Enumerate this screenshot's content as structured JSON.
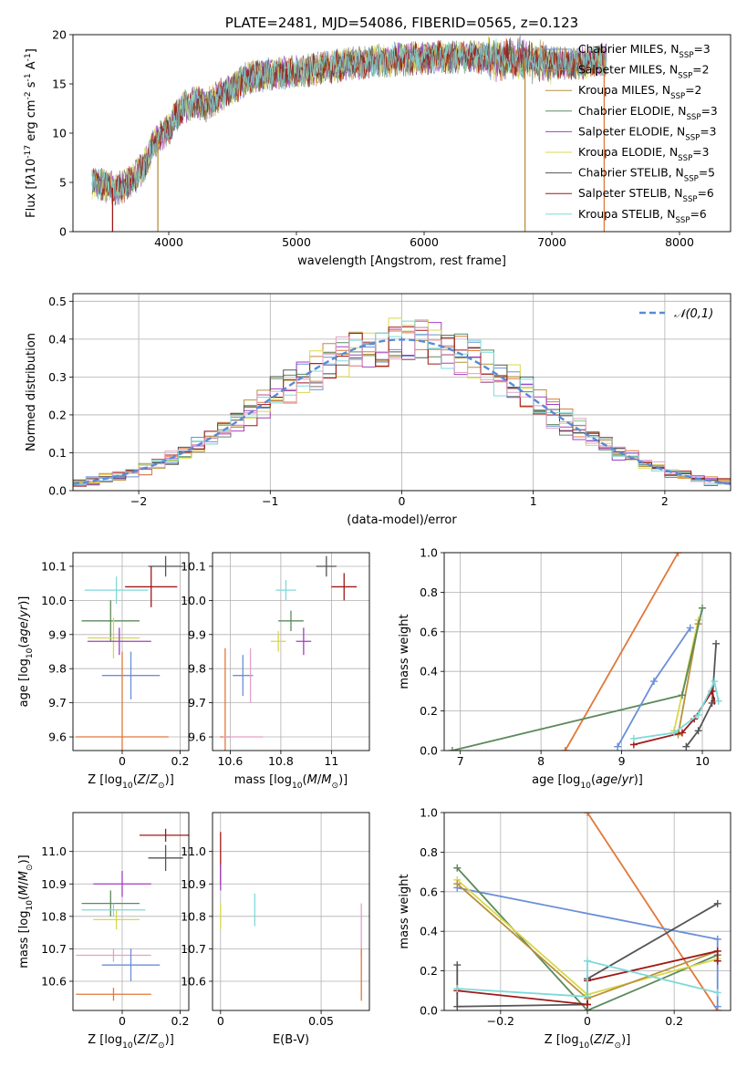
{
  "chart_data": [
    {
      "id": "spectrum",
      "type": "line",
      "title": "PLATE=2481, MJD=54086, FIBERID=0565, z=0.123",
      "xlabel": "wavelength [Angstrom, rest frame]",
      "ylabel": "Flux [f$\\lambda$10$^{-17}$ erg cm$^{-2}$ s$^{-1}$ A$^{-1}$]",
      "xlim": [
        3250,
        8400
      ],
      "ylim": [
        0,
        20
      ],
      "xticks": [
        4000,
        5000,
        6000,
        7000,
        8000
      ],
      "yticks": [
        0,
        5,
        10,
        15,
        20
      ],
      "grid": false,
      "legend_position": "top-right",
      "series": [
        {
          "name": "Chabrier MILES, N$_{SSP}$=3",
          "color": "#6a8fd8"
        },
        {
          "name": "Salpeter MILES, N$_{SSP}$=2",
          "color": "#e0783a"
        },
        {
          "name": "Kroupa MILES, N$_{SSP}$=2",
          "color": "#b8913c"
        },
        {
          "name": "Chabrier ELODIE, N$_{SSP}$=3",
          "color": "#5c8a5c"
        },
        {
          "name": "Salpeter ELODIE, N$_{SSP}$=3",
          "color": "#a040c0"
        },
        {
          "name": "Kroupa ELODIE, N$_{SSP}$=3",
          "color": "#d8d84a"
        },
        {
          "name": "Chabrier STELIB, N$_{SSP}$=5",
          "color": "#555555"
        },
        {
          "name": "Salpeter STELIB, N$_{SSP}$=6",
          "color": "#a01818"
        },
        {
          "name": "Kroupa STELIB, N$_{SSP}$=6",
          "color": "#7fd8d8"
        }
      ],
      "continuum": {
        "x": [
          3400,
          3500,
          3600,
          3700,
          3800,
          3900,
          4000,
          4100,
          4200,
          4300,
          4400,
          4500,
          4600,
          4800,
          5000,
          5200,
          5400,
          5600,
          5800,
          6000,
          6200,
          6400,
          6600,
          6800,
          7000,
          7200,
          7400
        ],
        "y": [
          5.0,
          4.7,
          4.3,
          5.0,
          6.5,
          9.2,
          10.5,
          12.5,
          13.2,
          12.8,
          13.8,
          14.5,
          15.5,
          16.0,
          16.3,
          16.6,
          17.0,
          17.3,
          17.5,
          17.6,
          17.7,
          17.8,
          17.6,
          17.5,
          17.2,
          17.0,
          17.5
        ]
      },
      "spikes": [
        {
          "x": 3560,
          "y": 0
        },
        {
          "x": 3915,
          "y": 0
        },
        {
          "x": 6790,
          "y": 0
        },
        {
          "x": 7410,
          "y": 0
        }
      ]
    },
    {
      "id": "residuals",
      "type": "histogram",
      "xlabel": "(data-model)/error",
      "ylabel": "Normed distribution",
      "xlim": [
        -2.5,
        2.5
      ],
      "ylim": [
        0,
        0.52
      ],
      "xticks": [
        -2,
        -1,
        0,
        1,
        2
      ],
      "yticks": [
        0.0,
        0.1,
        0.2,
        0.3,
        0.4,
        0.5
      ],
      "grid": true,
      "legend_position": "top-right",
      "reference": {
        "name": "$\\mathcal{N}(0,1)$",
        "color": "#5a8ad8"
      },
      "bin_width": 0.1
    },
    {
      "id": "age-vs-Z",
      "type": "scatter",
      "xlabel": "Z [log$_{10}$($Z$/$Z_\\odot$)]",
      "ylabel": "age  [log$_{10}$($age$/$yr$)]",
      "xlim": [
        -0.17,
        0.23
      ],
      "ylim": [
        9.56,
        10.14
      ],
      "xticks": [
        0.0,
        0.2
      ],
      "yticks": [
        9.6,
        9.7,
        9.8,
        9.9,
        10.0,
        10.1
      ],
      "grid": true,
      "points": [
        {
          "color": "#555555",
          "x": 0.15,
          "y": 10.1,
          "xerr": 0.06,
          "yerr": 0.03
        },
        {
          "color": "#a01818",
          "x": 0.1,
          "y": 10.04,
          "xerr": 0.09,
          "yerr": 0.06
        },
        {
          "color": "#7fd8d8",
          "x": -0.02,
          "y": 10.03,
          "xerr": 0.11,
          "yerr": 0.04
        },
        {
          "color": "#5c8a5c",
          "x": -0.04,
          "y": 9.94,
          "xerr": 0.1,
          "yerr": 0.06
        },
        {
          "color": "#d8d84a",
          "x": -0.03,
          "y": 9.89,
          "xerr": 0.09,
          "yerr": 0.06
        },
        {
          "color": "#a040c0",
          "x": -0.01,
          "y": 9.88,
          "xerr": 0.11,
          "yerr": 0.04
        },
        {
          "color": "#6a8fd8",
          "x": 0.03,
          "y": 9.78,
          "xerr": 0.1,
          "yerr": 0.07
        },
        {
          "color": "#e0783a",
          "x": 0.0,
          "y": 9.6,
          "xerr": 0.16,
          "yerr": 0.25
        },
        {
          "color": "#b8913c",
          "x": 0.0,
          "y": 9.6,
          "xerr": 0.0,
          "yerr": 0.0
        }
      ]
    },
    {
      "id": "age-vs-mass",
      "type": "scatter",
      "xlabel": "mass [log$_{10}$($M$/$M_\\odot$)]",
      "ylabel": "",
      "xlim": [
        10.53,
        11.15
      ],
      "ylim": [
        9.56,
        10.14
      ],
      "xticks": [
        10.6,
        10.8,
        11.0
      ],
      "yticks": [
        9.6,
        9.7,
        9.8,
        9.9,
        10.0,
        10.1
      ],
      "grid": true,
      "points": [
        {
          "color": "#555555",
          "x": 10.98,
          "y": 10.1,
          "xerr": 0.04,
          "yerr": 0.03
        },
        {
          "color": "#a01818",
          "x": 11.05,
          "y": 10.04,
          "xerr": 0.05,
          "yerr": 0.04
        },
        {
          "color": "#7fd8d8",
          "x": 10.82,
          "y": 10.03,
          "xerr": 0.04,
          "yerr": 0.03
        },
        {
          "color": "#5c8a5c",
          "x": 10.84,
          "y": 9.94,
          "xerr": 0.05,
          "yerr": 0.03
        },
        {
          "color": "#d8d84a",
          "x": 10.79,
          "y": 9.88,
          "xerr": 0.03,
          "yerr": 0.03
        },
        {
          "color": "#a040c0",
          "x": 10.89,
          "y": 9.88,
          "xerr": 0.03,
          "yerr": 0.04
        },
        {
          "color": "#6a8fd8",
          "x": 10.65,
          "y": 9.78,
          "xerr": 0.04,
          "yerr": 0.06
        },
        {
          "color": "#e4a0c8",
          "x": 10.68,
          "y": 9.78,
          "xerr": 0.0,
          "yerr": 0.08
        },
        {
          "color": "#e0783a",
          "x": 10.58,
          "y": 9.6,
          "xerr": 0.02,
          "yerr": 0.26
        },
        {
          "color": "#e4a0c8",
          "x": 10.65,
          "y": 9.6,
          "xerr": 0.08,
          "yerr": 0.0
        }
      ]
    },
    {
      "id": "weight-vs-age",
      "type": "line",
      "xlabel": "age  [log$_{10}$($age$/$yr$)]",
      "ylabel": "mass weight",
      "xlim": [
        6.8,
        10.35
      ],
      "ylim": [
        0,
        1.0
      ],
      "xticks": [
        7,
        8,
        9,
        10
      ],
      "yticks": [
        0.0,
        0.2,
        0.4,
        0.6,
        0.8,
        1.0
      ],
      "grid": true,
      "series": [
        {
          "color": "#e0783a",
          "x": [
            8.3,
            9.7
          ],
          "y": [
            0.0,
            1.0
          ]
        },
        {
          "color": "#5c8a5c",
          "x": [
            6.9,
            9.75
          ],
          "y": [
            0.0,
            0.28
          ]
        },
        {
          "color": "#6a8fd8",
          "x": [
            8.95,
            9.4,
            9.85
          ],
          "y": [
            0.02,
            0.35,
            0.62
          ]
        },
        {
          "color": "#d8d84a",
          "x": [
            9.65,
            9.95
          ],
          "y": [
            0.1,
            0.66
          ]
        },
        {
          "color": "#b8913c",
          "x": [
            9.7,
            9.95
          ],
          "y": [
            0.08,
            0.64
          ]
        },
        {
          "color": "#5c8a5c",
          "x": [
            9.75,
            10.0
          ],
          "y": [
            0.28,
            0.72
          ]
        },
        {
          "color": "#555555",
          "x": [
            9.8,
            9.95,
            10.12,
            10.17
          ],
          "y": [
            0.02,
            0.1,
            0.24,
            0.54
          ]
        },
        {
          "color": "#a01818",
          "x": [
            9.15,
            9.75,
            9.9,
            10.12,
            10.15
          ],
          "y": [
            0.03,
            0.09,
            0.16,
            0.3,
            0.25
          ]
        },
        {
          "color": "#7fd8d8",
          "x": [
            9.15,
            9.65,
            9.95,
            10.15,
            10.2
          ],
          "y": [
            0.06,
            0.09,
            0.18,
            0.35,
            0.25
          ]
        }
      ]
    },
    {
      "id": "mass-vs-Z",
      "type": "scatter",
      "xlabel": "Z [log$_{10}$($Z$/$Z_\\odot$)]",
      "ylabel": "mass [log$_{10}$($M$/$M_\\odot$)]",
      "xlim": [
        -0.17,
        0.23
      ],
      "ylim": [
        10.51,
        11.12
      ],
      "xticks": [
        0.0,
        0.2
      ],
      "yticks": [
        10.6,
        10.7,
        10.8,
        10.9,
        11.0
      ],
      "grid": true,
      "points": [
        {
          "color": "#a01818",
          "x": 0.15,
          "y": 11.05,
          "xerr": 0.09,
          "yerr": 0.02
        },
        {
          "color": "#555555",
          "x": 0.15,
          "y": 10.98,
          "xerr": 0.06,
          "yerr": 0.04
        },
        {
          "color": "#a040c0",
          "x": 0.0,
          "y": 10.9,
          "xerr": 0.1,
          "yerr": 0.04
        },
        {
          "color": "#5c8a5c",
          "x": -0.04,
          "y": 10.84,
          "xerr": 0.1,
          "yerr": 0.04
        },
        {
          "color": "#7fd8d8",
          "x": -0.03,
          "y": 10.82,
          "xerr": 0.11,
          "yerr": 0.02
        },
        {
          "color": "#d8d84a",
          "x": -0.02,
          "y": 10.79,
          "xerr": 0.08,
          "yerr": 0.03
        },
        {
          "color": "#e4a0c8",
          "x": -0.03,
          "y": 10.68,
          "xerr": 0.13,
          "yerr": 0.02
        },
        {
          "color": "#6a8fd8",
          "x": 0.03,
          "y": 10.65,
          "xerr": 0.1,
          "yerr": 0.05
        },
        {
          "color": "#e0783a",
          "x": -0.03,
          "y": 10.56,
          "xerr": 0.13,
          "yerr": 0.02
        }
      ]
    },
    {
      "id": "mass-vs-ebv",
      "type": "scatter",
      "xlabel": "E(B-V)",
      "ylabel": "",
      "xlim": [
        -0.004,
        0.074
      ],
      "ylim": [
        10.51,
        11.12
      ],
      "xticks": [
        0.0,
        0.05
      ],
      "yticks": [
        10.6,
        10.7,
        10.8,
        10.9,
        11.0
      ],
      "grid": true,
      "points": [
        {
          "color": "#a01818",
          "x": 0.0,
          "y": 10.98,
          "xerr": 0.0,
          "yerr": 0.08
        },
        {
          "color": "#a040c0",
          "x": 0.0,
          "y": 10.92,
          "xerr": 0.0,
          "yerr": 0.04
        },
        {
          "color": "#d8d84a",
          "x": 0.0,
          "y": 10.8,
          "xerr": 0.0,
          "yerr": 0.04
        },
        {
          "color": "#7fd8d8",
          "x": 0.017,
          "y": 10.82,
          "xerr": 0.0,
          "yerr": 0.05
        },
        {
          "color": "#e4a0c8",
          "x": 0.07,
          "y": 10.76,
          "xerr": 0.0,
          "yerr": 0.08
        },
        {
          "color": "#e0783a",
          "x": 0.07,
          "y": 10.62,
          "xerr": 0.0,
          "yerr": 0.08
        }
      ]
    },
    {
      "id": "weight-vs-Z",
      "type": "line",
      "xlabel": "Z [log$_{10}$($Z$/$Z_\\odot$)]",
      "ylabel": "mass weight",
      "xlim": [
        -0.33,
        0.33
      ],
      "ylim": [
        0,
        1.0
      ],
      "xticks": [
        -0.2,
        0.0,
        0.2
      ],
      "yticks": [
        0.0,
        0.2,
        0.4,
        0.6,
        0.8,
        1.0
      ],
      "grid": true,
      "series": [
        {
          "color": "#e0783a",
          "x": [
            0.0,
            0.3
          ],
          "y": [
            1.0,
            0.0
          ]
        },
        {
          "color": "#6a8fd8",
          "x": [
            -0.3,
            0.3,
            0.3
          ],
          "y": [
            0.62,
            0.36,
            0.02
          ]
        },
        {
          "color": "#5c8a5c",
          "x": [
            -0.3,
            0.0,
            0.3
          ],
          "y": [
            0.72,
            0.0,
            0.28
          ]
        },
        {
          "color": "#d8d84a",
          "x": [
            -0.3,
            0.0,
            0.3
          ],
          "y": [
            0.66,
            0.08,
            0.26
          ]
        },
        {
          "color": "#b8913c",
          "x": [
            -0.3,
            0.0,
            0.3
          ],
          "y": [
            0.64,
            0.06,
            0.3
          ]
        },
        {
          "color": "#555555",
          "x": [
            -0.3,
            -0.3,
            0.0,
            0.0,
            0.3
          ],
          "y": [
            0.23,
            0.02,
            0.03,
            0.16,
            0.54
          ]
        },
        {
          "color": "#a01818",
          "x": [
            -0.3,
            0.0,
            0.0,
            0.3,
            0.3
          ],
          "y": [
            0.1,
            0.03,
            0.15,
            0.3,
            0.25
          ]
        },
        {
          "color": "#7fd8d8",
          "x": [
            -0.3,
            0.0,
            0.0,
            0.3
          ],
          "y": [
            0.11,
            0.07,
            0.25,
            0.09
          ]
        }
      ]
    }
  ]
}
